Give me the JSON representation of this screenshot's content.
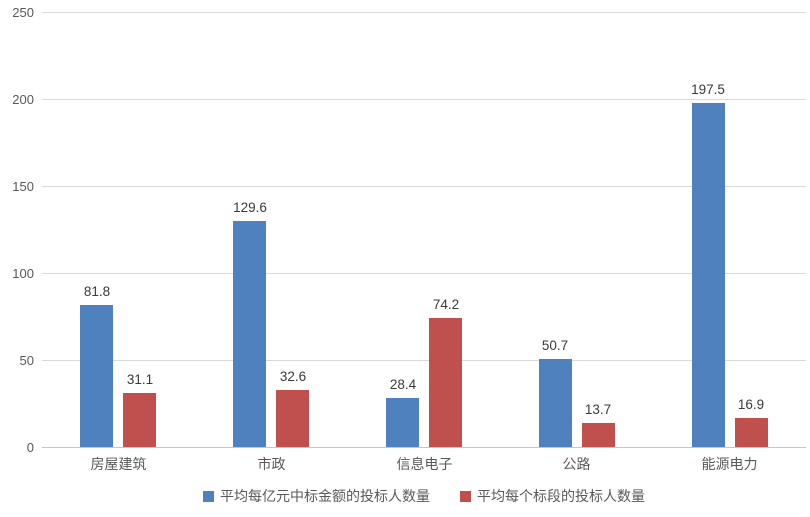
{
  "chart_data": {
    "type": "bar",
    "title": "",
    "xlabel": "",
    "ylabel": "",
    "categories": [
      "房屋建筑",
      "市政",
      "信息电子",
      "公路",
      "能源电力"
    ],
    "series": [
      {
        "name": "平均每亿元中标金额的投标人数量",
        "color": "#4e81bd",
        "values": [
          81.8,
          129.6,
          28.4,
          50.7,
          197.5
        ]
      },
      {
        "name": "平均每个标段的投标人数量",
        "color": "#c0504d",
        "values": [
          31.1,
          32.6,
          74.2,
          13.7,
          16.9
        ]
      }
    ],
    "ylim": [
      0,
      250
    ],
    "yticks": [
      0,
      50,
      100,
      150,
      200,
      250
    ],
    "grid": true,
    "data_labels": true,
    "legend_position": "bottom"
  },
  "colors": {
    "gridline": "#d9d9d9",
    "zero_line": "#c6c6c6",
    "axis_text": "#595959",
    "value_label_text": "#3a3a3a",
    "background": "#ffffff"
  }
}
